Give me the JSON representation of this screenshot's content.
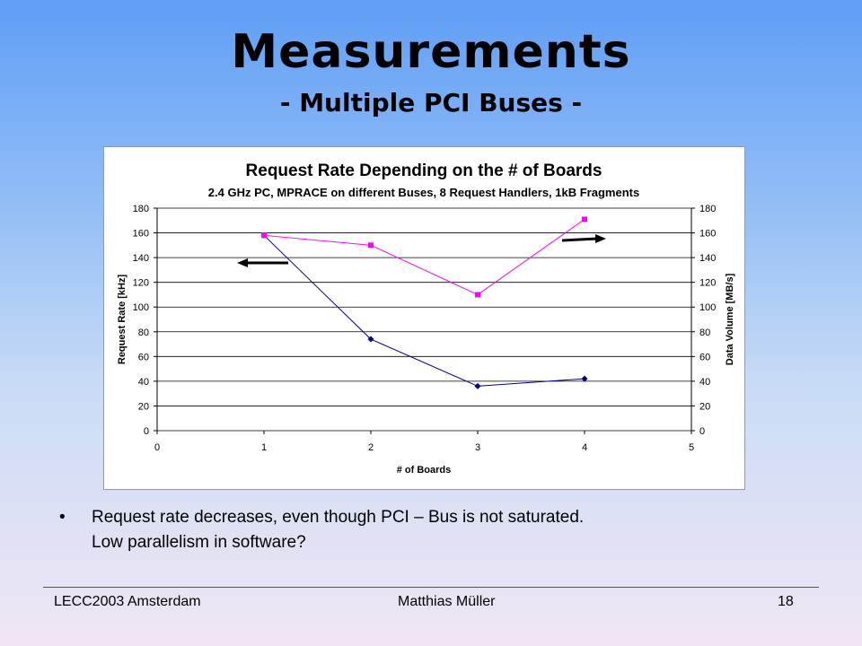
{
  "slide": {
    "title": "Measurements",
    "subtitle": "- Multiple PCI Buses -",
    "bullet_symbol": "•",
    "bullet_line1": "Request rate decreases, even though PCI – Bus is not saturated.",
    "bullet_line2": "Low parallelism in software?",
    "footer_left": "LECC2003 Amsterdam",
    "footer_center": "Matthias Müller",
    "footer_right": "18"
  },
  "chart_data": {
    "type": "line",
    "title": "Request Rate Depending on the # of Boards",
    "subtitle": "2.4 GHz PC, MPRACE on different Buses, 8 Request Handlers, 1kB Fragments",
    "xlabel": "# of Boards",
    "ylabel": "Request Rate [kHz]",
    "y2label": "Data Volume [MB/s]",
    "xlim": [
      0,
      5
    ],
    "ylim": [
      0,
      180
    ],
    "y2lim": [
      0,
      180
    ],
    "xticks": [
      0,
      1,
      2,
      3,
      4,
      5
    ],
    "yticks": [
      0,
      20,
      40,
      60,
      80,
      100,
      120,
      140,
      160,
      180
    ],
    "grid": true,
    "legend": "none",
    "series": [
      {
        "axis": "left",
        "color": "#00008b",
        "marker": "diamond",
        "x": [
          1,
          2,
          3,
          4
        ],
        "y": [
          158,
          74,
          36,
          42
        ]
      },
      {
        "axis": "right",
        "color": "#ff00ff",
        "marker": "square",
        "x": [
          1,
          2,
          3,
          4
        ],
        "y": [
          158,
          150,
          110,
          171
        ]
      }
    ],
    "annotations": [
      {
        "type": "arrow",
        "direction": "left",
        "meaning": "series on left axis"
      },
      {
        "type": "arrow",
        "direction": "right",
        "meaning": "series on right axis"
      }
    ]
  }
}
